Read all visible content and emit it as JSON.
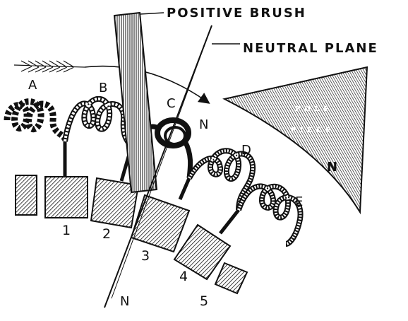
{
  "labels": {
    "positive_brush": "POSITIVE BRUSH",
    "neutral_plane": "NEUTRAL PLANE",
    "pole_word1": "POLE",
    "pole_word2": "PIECE",
    "pole_polarity": "N",
    "neutral_top": "N",
    "neutral_bottom": "N"
  },
  "coils": [
    "A",
    "B",
    "C",
    "D",
    "E"
  ],
  "segments": [
    "1",
    "2",
    "3",
    "4",
    "5"
  ],
  "colors": {
    "ink": "#111111",
    "paper": "#ffffff"
  }
}
